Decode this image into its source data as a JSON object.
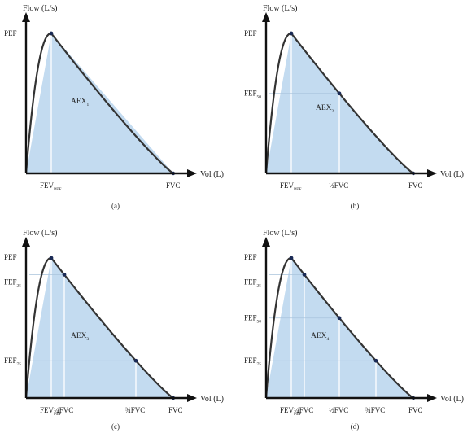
{
  "colors": {
    "fill": "#c3dbf0",
    "curve": "#333333",
    "axis": "#111111",
    "guide": "#ffffff",
    "point": "#1a2a55"
  },
  "axes": {
    "flow_label": "Flow (L/s)",
    "vol_label": "Vol (L)"
  },
  "panels": [
    {
      "id": "a",
      "caption": "(a)",
      "y_labels": [
        {
          "main": "PEF",
          "sub": "",
          "key": "pef"
        }
      ],
      "x_labels": [
        {
          "main": "FEV",
          "sub": "PEF",
          "key": "fevpef"
        },
        {
          "main": "FVC",
          "sub": "",
          "key": "fvc"
        }
      ],
      "area": {
        "main": "AEX",
        "sub": "1"
      }
    },
    {
      "id": "b",
      "caption": "(b)",
      "y_labels": [
        {
          "main": "PEF",
          "sub": "",
          "key": "pef"
        },
        {
          "main": "FEF",
          "sub": "50",
          "key": "fef50"
        }
      ],
      "x_labels": [
        {
          "main": "FEV",
          "sub": "PEF",
          "key": "fevpef"
        },
        {
          "main": "½FVC",
          "sub": "",
          "key": "v50"
        },
        {
          "main": "FVC",
          "sub": "",
          "key": "fvc"
        }
      ],
      "area": {
        "main": "AEX",
        "sub": "2"
      }
    },
    {
      "id": "c",
      "caption": "(c)",
      "y_labels": [
        {
          "main": "PEF",
          "sub": "",
          "key": "pef"
        },
        {
          "main": "FEF",
          "sub": "25",
          "key": "fef25"
        },
        {
          "main": "FEF",
          "sub": "75",
          "key": "fef75"
        }
      ],
      "x_labels": [
        {
          "main": "FEV",
          "sub": "PEF",
          "key": "fevpef"
        },
        {
          "main": "¼FVC",
          "sub": "",
          "key": "v25"
        },
        {
          "main": "¾FVC",
          "sub": "",
          "key": "v75"
        },
        {
          "main": "FVC",
          "sub": "",
          "key": "fvc"
        }
      ],
      "area": {
        "main": "AEX",
        "sub": "3"
      }
    },
    {
      "id": "d",
      "caption": "(d)",
      "y_labels": [
        {
          "main": "PEF",
          "sub": "",
          "key": "pef"
        },
        {
          "main": "FEF",
          "sub": "25",
          "key": "fef25"
        },
        {
          "main": "FEF",
          "sub": "50",
          "key": "fef50"
        },
        {
          "main": "FEF",
          "sub": "75",
          "key": "fef75"
        }
      ],
      "x_labels": [
        {
          "main": "FEV",
          "sub": "PEF",
          "key": "fevpef"
        },
        {
          "main": "¼FVC",
          "sub": "",
          "key": "v25"
        },
        {
          "main": "½FVC",
          "sub": "",
          "key": "v50"
        },
        {
          "main": "¾FVC",
          "sub": "",
          "key": "v75"
        },
        {
          "main": "FVC",
          "sub": "",
          "key": "fvc"
        }
      ],
      "area": {
        "main": "AEX",
        "sub": "4"
      }
    }
  ]
}
